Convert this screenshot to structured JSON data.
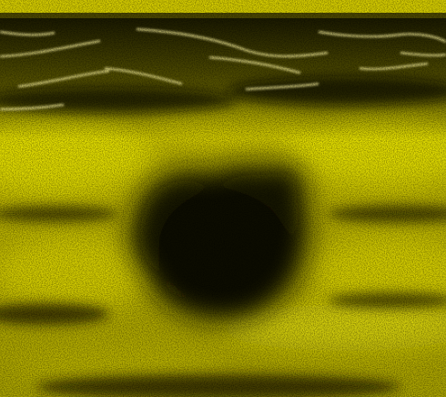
{
  "image": {
    "kind": "ultrasound-scan",
    "tint_color": "#f2ec00",
    "background_color": "#0a0900",
    "lesion_color": "#141200",
    "top_band_color": "#d8cf00"
  }
}
